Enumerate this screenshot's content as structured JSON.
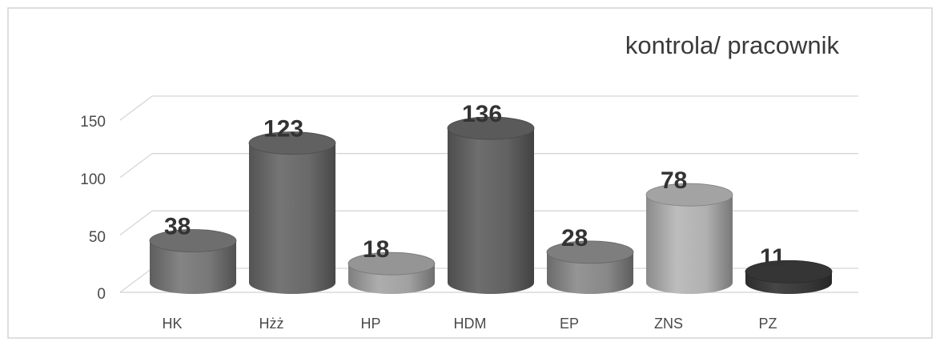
{
  "chart_data": {
    "type": "bar",
    "title": "kontrola/ pracownik",
    "categories": [
      "HK",
      "Hżż",
      "HP",
      "HDM",
      "EP",
      "ZNS",
      "PZ"
    ],
    "values": [
      38,
      123,
      18,
      136,
      28,
      78,
      11
    ],
    "yticks": [
      "0",
      "50",
      "100",
      "150"
    ],
    "ylim": [
      0,
      150
    ],
    "grid": true,
    "legend": "none",
    "colors": [
      "#7d7d7d",
      "#6e6e6e",
      "#a9a9a9",
      "#666666",
      "#8f8f8f",
      "#b9b9b9",
      "#3c3c3c"
    ]
  }
}
